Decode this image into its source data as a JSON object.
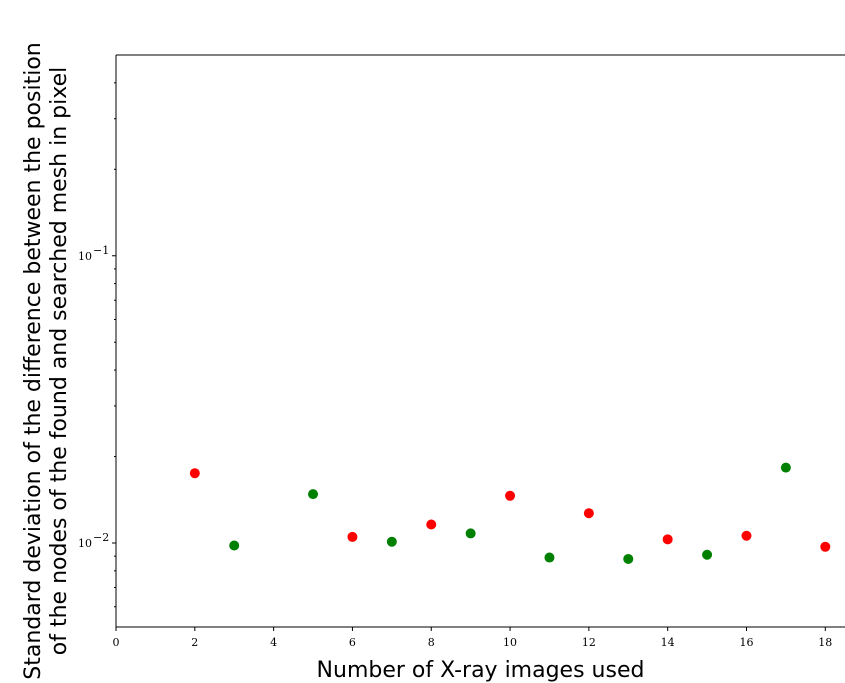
{
  "chart_data": {
    "type": "scatter",
    "title": "",
    "xlabel": "Number of X-ray images used",
    "ylabel_lines": [
      "Standard deviation of the difference between the position",
      "of the nodes of the found and searched mesh in pixel"
    ],
    "y_scale": "log",
    "xlim": [
      0,
      18.5
    ],
    "ylim": [
      0.0051,
      0.5
    ],
    "x_ticks": [
      0,
      2,
      4,
      6,
      8,
      10,
      12,
      14,
      16,
      18
    ],
    "x_tick_labels": [
      "0",
      "2",
      "4",
      "6",
      "8",
      "10",
      "12",
      "14",
      "16",
      "18"
    ],
    "y_ticks": [
      0.01,
      0.1
    ],
    "y_tick_labels": [
      {
        "base": "10",
        "exp": "−2"
      },
      {
        "base": "10",
        "exp": "−1"
      }
    ],
    "y_minor_ticks": [
      0.006,
      0.007,
      0.008,
      0.009,
      0.02,
      0.03,
      0.04,
      0.05,
      0.06,
      0.07,
      0.08,
      0.09,
      0.2,
      0.3,
      0.4
    ],
    "grid": false,
    "legend": "none",
    "colors": {
      "red": "#ff0000",
      "green": "#008000"
    },
    "points": [
      {
        "x": 2,
        "y": 0.0175,
        "color": "red"
      },
      {
        "x": 3,
        "y": 0.0098,
        "color": "green"
      },
      {
        "x": 5,
        "y": 0.0148,
        "color": "green"
      },
      {
        "x": 6,
        "y": 0.0105,
        "color": "red"
      },
      {
        "x": 7,
        "y": 0.0101,
        "color": "green"
      },
      {
        "x": 8,
        "y": 0.0116,
        "color": "red"
      },
      {
        "x": 9,
        "y": 0.0108,
        "color": "green"
      },
      {
        "x": 10,
        "y": 0.0146,
        "color": "red"
      },
      {
        "x": 11,
        "y": 0.0089,
        "color": "green"
      },
      {
        "x": 12,
        "y": 0.0127,
        "color": "red"
      },
      {
        "x": 13,
        "y": 0.0088,
        "color": "green"
      },
      {
        "x": 14,
        "y": 0.0103,
        "color": "red"
      },
      {
        "x": 15,
        "y": 0.0091,
        "color": "green"
      },
      {
        "x": 16,
        "y": 0.0106,
        "color": "red"
      },
      {
        "x": 17,
        "y": 0.0183,
        "color": "green"
      },
      {
        "x": 18,
        "y": 0.0097,
        "color": "red"
      }
    ]
  }
}
